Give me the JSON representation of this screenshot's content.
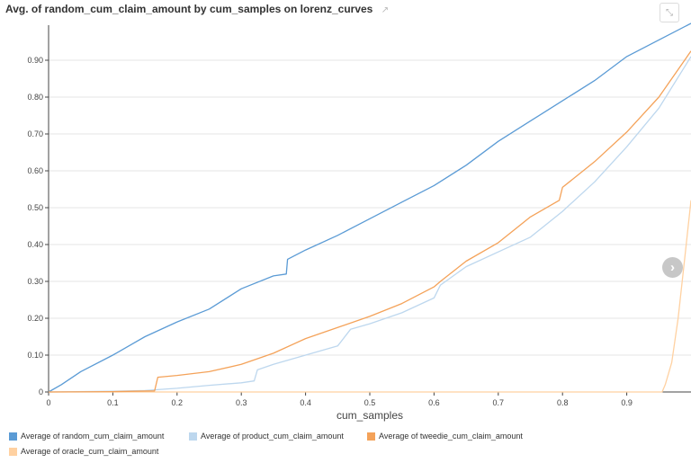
{
  "title": "Avg. of random_cum_claim_amount by cum_samples on lorenz_curves",
  "chart_data": {
    "type": "line",
    "title": "Avg. of random_cum_claim_amount by cum_samples on lorenz_curves",
    "xlabel": "cum_samples",
    "ylabel": "",
    "xlim": [
      0,
      1
    ],
    "ylim": [
      0,
      1
    ],
    "x_ticks": [
      0,
      0.1,
      0.2,
      0.3,
      0.4,
      0.5,
      0.6,
      0.7,
      0.8,
      0.9
    ],
    "x_tick_labels": [
      "0",
      "0.1",
      "0.2",
      "0.3",
      "0.4",
      "0.5",
      "0.6",
      "0.7",
      "0.8",
      "0.9"
    ],
    "y_ticks": [
      0,
      0.1,
      0.2,
      0.3,
      0.4,
      0.5,
      0.6,
      0.7,
      0.8,
      0.9
    ],
    "y_tick_labels": [
      "0",
      "0.10",
      "0.20",
      "0.30",
      "0.40",
      "0.50",
      "0.60",
      "0.70",
      "0.80",
      "0.90"
    ],
    "grid": true,
    "legend_position": "bottom",
    "series": [
      {
        "name": "Average of random_cum_claim_amount",
        "color": "#5b9bd5",
        "x": [
          0,
          0.02,
          0.05,
          0.1,
          0.15,
          0.2,
          0.25,
          0.3,
          0.35,
          0.37,
          0.372,
          0.4,
          0.45,
          0.5,
          0.55,
          0.6,
          0.65,
          0.7,
          0.75,
          0.8,
          0.85,
          0.9,
          0.95,
          1.0
        ],
        "values": [
          0,
          0.02,
          0.055,
          0.1,
          0.15,
          0.19,
          0.225,
          0.28,
          0.315,
          0.32,
          0.36,
          0.385,
          0.425,
          0.47,
          0.515,
          0.56,
          0.615,
          0.68,
          0.735,
          0.79,
          0.845,
          0.91,
          0.955,
          1.0
        ]
      },
      {
        "name": "Average of product_cum_claim_amount",
        "color": "#bdd7ee",
        "x": [
          0,
          0.1,
          0.15,
          0.2,
          0.25,
          0.3,
          0.32,
          0.325,
          0.35,
          0.4,
          0.45,
          0.47,
          0.5,
          0.55,
          0.6,
          0.61,
          0.65,
          0.7,
          0.75,
          0.8,
          0.85,
          0.9,
          0.95,
          1.0
        ],
        "values": [
          0,
          0.002,
          0.004,
          0.01,
          0.018,
          0.025,
          0.03,
          0.06,
          0.075,
          0.1,
          0.125,
          0.17,
          0.185,
          0.215,
          0.255,
          0.29,
          0.34,
          0.38,
          0.42,
          0.49,
          0.57,
          0.665,
          0.77,
          0.91
        ]
      },
      {
        "name": "Average of tweedie_cum_claim_amount",
        "color": "#f4a259",
        "x": [
          0,
          0.1,
          0.165,
          0.17,
          0.2,
          0.25,
          0.3,
          0.35,
          0.4,
          0.45,
          0.5,
          0.55,
          0.6,
          0.61,
          0.65,
          0.7,
          0.75,
          0.795,
          0.8,
          0.85,
          0.9,
          0.95,
          1.0
        ],
        "values": [
          0,
          0.001,
          0.003,
          0.04,
          0.045,
          0.055,
          0.075,
          0.105,
          0.145,
          0.175,
          0.205,
          0.24,
          0.285,
          0.3,
          0.355,
          0.405,
          0.475,
          0.52,
          0.555,
          0.625,
          0.705,
          0.8,
          0.925
        ]
      },
      {
        "name": "Average of oracle_cum_claim_amount",
        "color": "#ffd1a1",
        "x": [
          0,
          0.5,
          0.9,
          0.955,
          0.96,
          0.97,
          0.98,
          0.99,
          1.0
        ],
        "values": [
          0,
          0,
          0,
          0,
          0.02,
          0.08,
          0.2,
          0.36,
          0.52
        ]
      }
    ]
  }
}
